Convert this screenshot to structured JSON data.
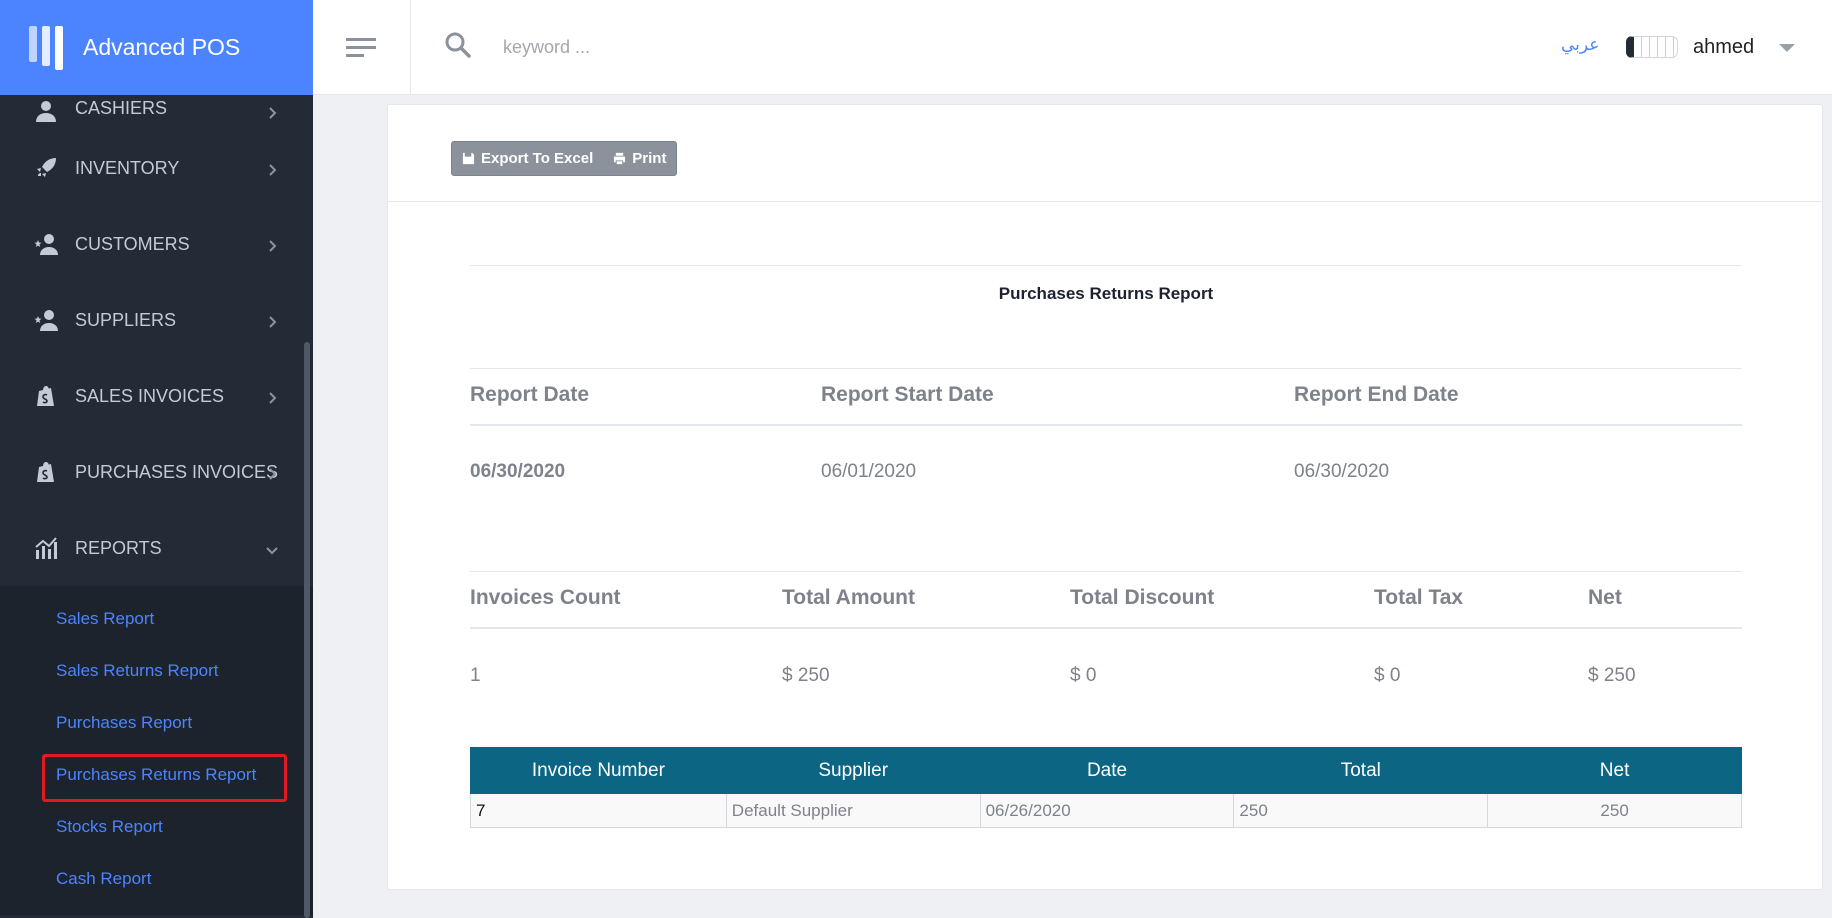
{
  "brand": {
    "name": "Advanced POS"
  },
  "sidebar": {
    "items": [
      {
        "label": "CASHIERS",
        "icon": "user-icon"
      },
      {
        "label": "INVENTORY",
        "icon": "rocket-icon"
      },
      {
        "label": "CUSTOMERS",
        "icon": "star-user-icon"
      },
      {
        "label": "SUPPLIERS",
        "icon": "star-user-icon"
      },
      {
        "label": "SALES INVOICES",
        "icon": "shopify-bag-icon"
      },
      {
        "label": "PURCHASES INVOICES",
        "icon": "shopify-bag-icon"
      },
      {
        "label": "REPORTS",
        "icon": "chart-icon"
      }
    ],
    "reports_submenu": [
      "Sales Report",
      "Sales Returns Report",
      "Purchases Report",
      "Purchases Returns Report",
      "Stocks Report",
      "Cash Report"
    ],
    "active_submenu": "Purchases Returns Report"
  },
  "header": {
    "search_placeholder": "keyword ...",
    "language_link": "عربي",
    "user_name": "ahmed"
  },
  "toolbar": {
    "export_label": "Export To Excel",
    "print_label": "Print"
  },
  "report": {
    "title": "Purchases Returns Report",
    "dates": {
      "headers": [
        "Report Date",
        "Report Start Date",
        "Report End Date"
      ],
      "values": [
        "06/30/2020",
        "06/01/2020",
        "06/30/2020"
      ]
    },
    "summary": {
      "headers": [
        "Invoices Count",
        "Total Amount",
        "Total Discount",
        "Total Tax",
        "Net"
      ],
      "values": [
        "1",
        "$ 250",
        "$ 0",
        "$ 0",
        "$ 250"
      ]
    },
    "table": {
      "columns": [
        "Invoice Number",
        "Supplier",
        "Date",
        "Total",
        "Net"
      ],
      "rows": [
        [
          "7",
          "Default Supplier",
          "06/26/2020",
          "250",
          "250"
        ]
      ]
    }
  },
  "colors": {
    "sidebar_bg": "#222b36",
    "brand_bg": "#4c84ff",
    "link": "#4c84ff",
    "table_header": "#0c6583",
    "highlight_border": "#e01a22"
  }
}
